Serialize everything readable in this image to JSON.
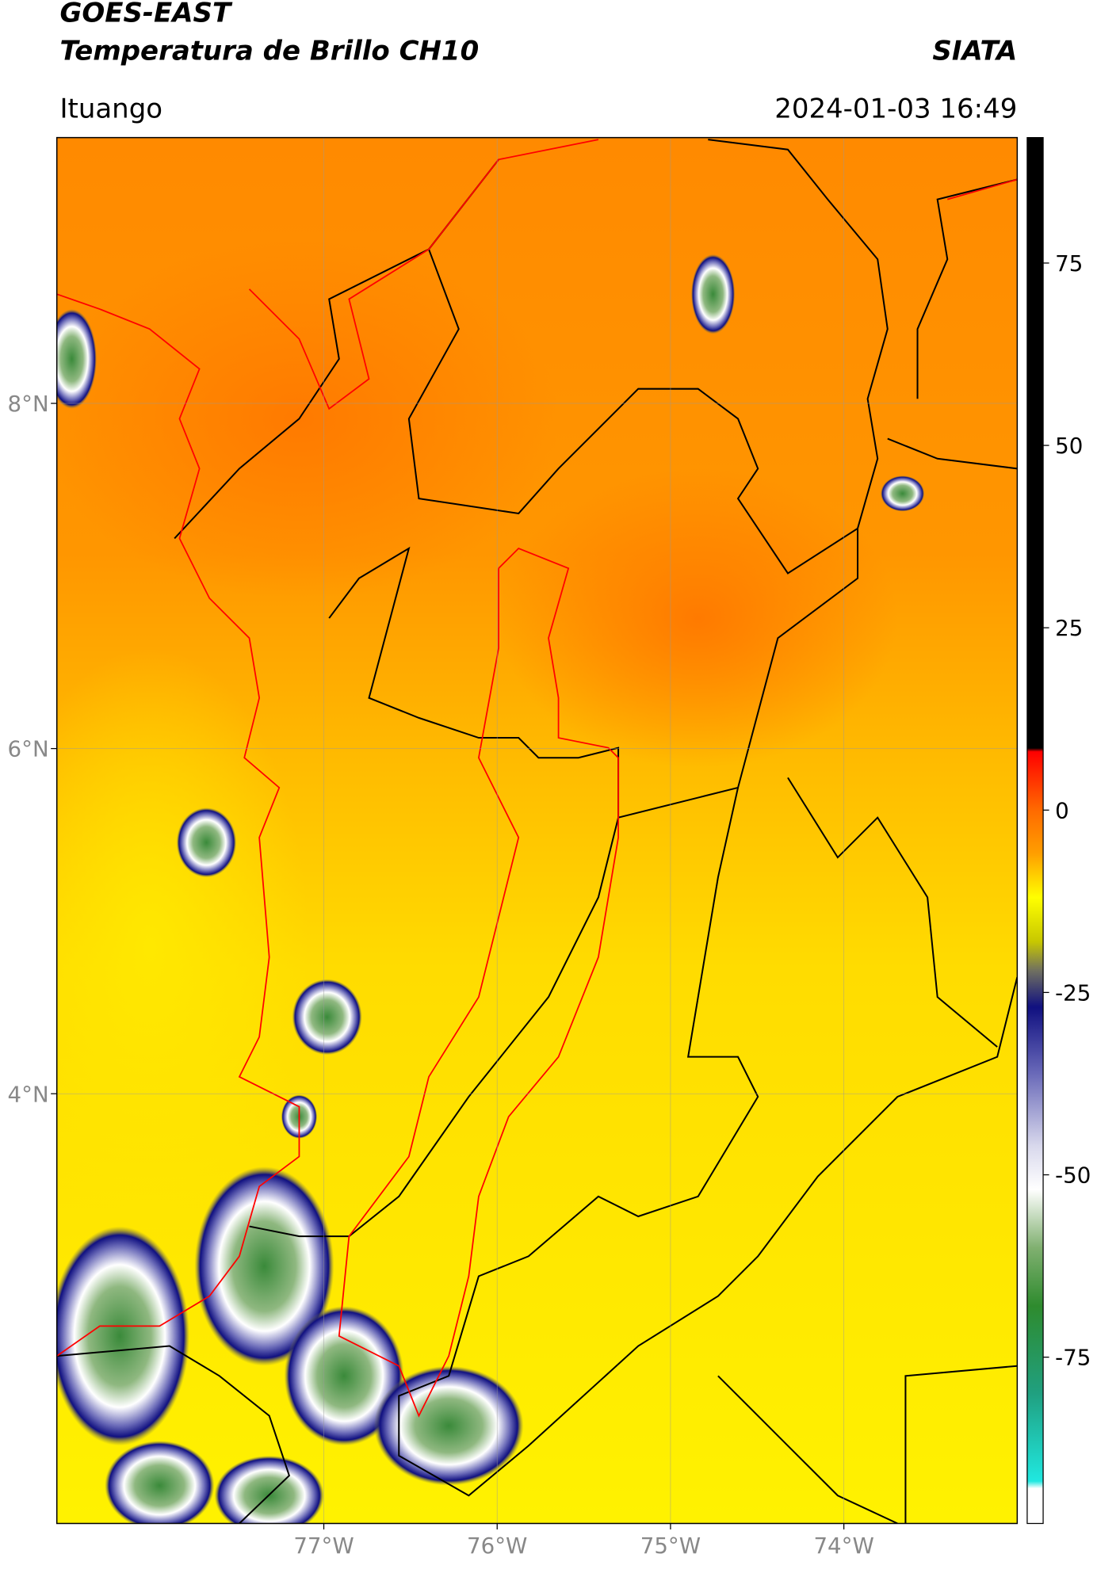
{
  "header": {
    "title": "GOES-EAST",
    "subtitle": "Temperatura de Brillo CH10",
    "source": "SIATA",
    "location": "Ituango",
    "datetime": "2024-01-03 16:49"
  },
  "map": {
    "xlim": [
      -78.54,
      -73.0
    ],
    "ylim": [
      1.51,
      9.54
    ],
    "xticks": [
      {
        "value": -77,
        "label": "77°W"
      },
      {
        "value": -76,
        "label": "76°W"
      },
      {
        "value": -75,
        "label": "75°W"
      },
      {
        "value": -74,
        "label": "74°W"
      }
    ],
    "yticks": [
      {
        "value": 8,
        "label": "8°N"
      },
      {
        "value": 6,
        "label": "6°N"
      },
      {
        "value": 4,
        "label": "4°N"
      }
    ],
    "grid": true
  },
  "colorbar": {
    "lim": [
      -97.8,
      92.2
    ],
    "ticks": [
      75,
      50,
      25,
      0,
      -25,
      -50,
      -75
    ],
    "stops": [
      {
        "value": 92.2,
        "color": "#000000"
      },
      {
        "value": 8.5,
        "color": "#000000"
      },
      {
        "value": 8,
        "color": "#ff0000"
      },
      {
        "value": 0,
        "color": "#ff6a00"
      },
      {
        "value": -6,
        "color": "#ff9f00"
      },
      {
        "value": -12,
        "color": "#ffff00"
      },
      {
        "value": -18,
        "color": "#c8c800"
      },
      {
        "value": -22,
        "color": "#707060"
      },
      {
        "value": -27,
        "color": "#101080"
      },
      {
        "value": -36,
        "color": "#6868b8"
      },
      {
        "value": -46,
        "color": "#d8d8ec"
      },
      {
        "value": -52,
        "color": "#ffffff"
      },
      {
        "value": -60,
        "color": "#80b070"
      },
      {
        "value": -68,
        "color": "#2e8b2e"
      },
      {
        "value": -80,
        "color": "#20a080"
      },
      {
        "value": -92,
        "color": "#20e8e0"
      },
      {
        "value": -93,
        "color": "#ffffff"
      },
      {
        "value": -97.8,
        "color": "#ffffff"
      }
    ]
  }
}
